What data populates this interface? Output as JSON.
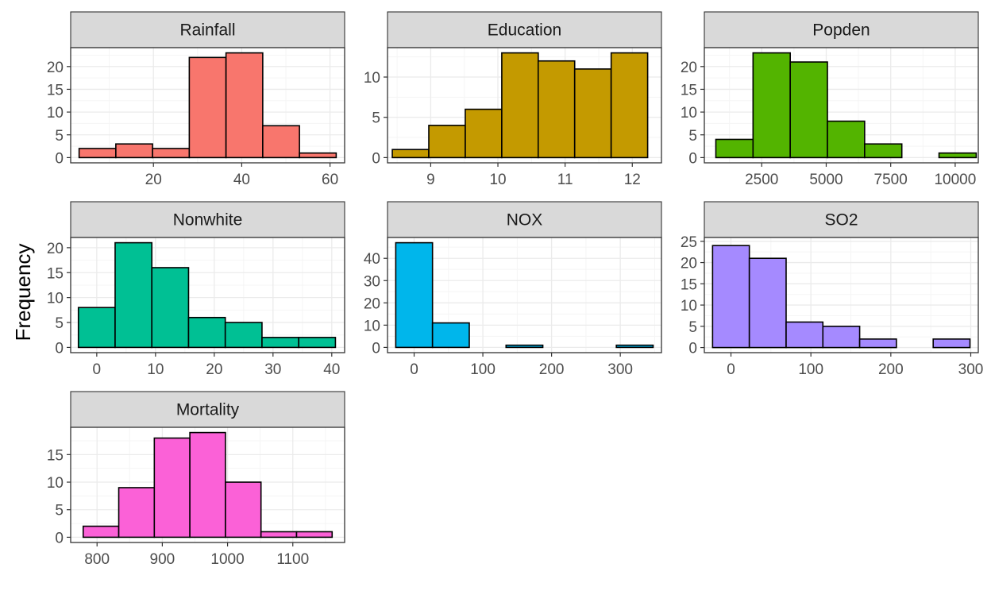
{
  "figure": {
    "ylabel": "Frequency",
    "style": {
      "panel_background": "#ffffff",
      "panel_border": "#333333",
      "strip_background": "#d9d9d9",
      "grid_major": "#ebebeb",
      "grid_minor": "#f5f5f5",
      "bar_outline": "#000000"
    }
  },
  "chart_data": [
    {
      "type": "bar",
      "title": "Rainfall",
      "color": "#F8766D",
      "bar_centers": [
        7.32,
        15.64,
        23.96,
        32.28,
        40.6,
        48.92,
        57.24
      ],
      "values": [
        2,
        3,
        2,
        22,
        23,
        7,
        1
      ],
      "bin_width": 8.32,
      "xlim": [
        1.25,
        63.31
      ],
      "ylim": [
        -1.15,
        24.15
      ],
      "x_ticks": [
        20,
        40,
        60
      ],
      "y_ticks": [
        0,
        5,
        10,
        15,
        20
      ]
    },
    {
      "type": "bar",
      "title": "Education",
      "color": "#C49A00",
      "bar_centers": [
        8.7,
        9.243,
        9.786,
        10.329,
        10.871,
        11.414,
        11.957
      ],
      "values": [
        1,
        4,
        6,
        13,
        12,
        11,
        13
      ],
      "bin_width": 0.543,
      "xlim": [
        8.357,
        12.434
      ],
      "ylim": [
        -0.65,
        13.65
      ],
      "x_ticks": [
        9,
        10,
        11,
        12
      ],
      "y_ticks": [
        0,
        5,
        10
      ]
    },
    {
      "type": "bar",
      "title": "Popden",
      "color": "#53B400",
      "bar_centers": [
        1442.5,
        2884.5,
        4326.5,
        5768.5,
        7210.5,
        8652.5,
        10094.5
      ],
      "values": [
        4,
        23,
        21,
        8,
        3,
        0,
        1
      ],
      "bin_width": 1442,
      "xlim": [
        275.5,
        10896
      ],
      "ylim": [
        -1.15,
        24.15
      ],
      "x_ticks": [
        2500,
        5000,
        7500,
        10000
      ],
      "y_ticks": [
        0,
        5,
        10,
        15,
        20
      ]
    },
    {
      "type": "bar",
      "title": "Nonwhite",
      "color": "#00C094",
      "bar_centers": [
        0.0,
        6.25,
        12.5,
        18.75,
        25.0,
        31.25,
        37.5
      ],
      "values": [
        8,
        21,
        16,
        6,
        5,
        2,
        2
      ],
      "bin_width": 6.25,
      "xlim": [
        -4.44,
        42.19
      ],
      "ylim": [
        -1.05,
        22.05
      ],
      "x_ticks": [
        0,
        10,
        20,
        30,
        40
      ],
      "y_ticks": [
        0,
        5,
        10,
        15,
        20
      ]
    },
    {
      "type": "bar",
      "title": "NOX",
      "color": "#00B6EB",
      "bar_centers": [
        0,
        53.5,
        107,
        160.5,
        214,
        267.5,
        321
      ],
      "values": [
        47,
        11,
        0,
        1,
        0,
        0,
        1
      ],
      "bin_width": 53.5,
      "xlim": [
        -38.74,
        359.9
      ],
      "ylim": [
        -2.35,
        49.35
      ],
      "x_ticks": [
        0,
        100,
        200,
        300
      ],
      "y_ticks": [
        0,
        10,
        20,
        30,
        40
      ]
    },
    {
      "type": "bar",
      "title": "SO2",
      "color": "#A58AFF",
      "bar_centers": [
        0,
        46,
        92,
        138,
        184,
        230,
        276
      ],
      "values": [
        24,
        21,
        6,
        5,
        2,
        0,
        2
      ],
      "bin_width": 46,
      "xlim": [
        -33.31,
        309.43
      ],
      "ylim": [
        -1.2,
        25.9
      ],
      "x_ticks": [
        0,
        100,
        200,
        300
      ],
      "y_ticks": [
        0,
        5,
        10,
        15,
        20,
        25
      ]
    },
    {
      "type": "bar",
      "title": "Mortality",
      "color": "#FB61D7",
      "bar_centers": [
        806.0,
        860.5,
        915.0,
        969.5,
        1024.0,
        1078.5,
        1133.0
      ],
      "values": [
        2,
        9,
        18,
        19,
        10,
        1,
        1
      ],
      "bin_width": 54.5,
      "xlim": [
        759.57,
        1179.4
      ],
      "ylim": [
        -0.95,
        19.95
      ],
      "x_ticks": [
        800,
        900,
        1000,
        1100
      ],
      "y_ticks": [
        0,
        5,
        10,
        15
      ]
    }
  ]
}
